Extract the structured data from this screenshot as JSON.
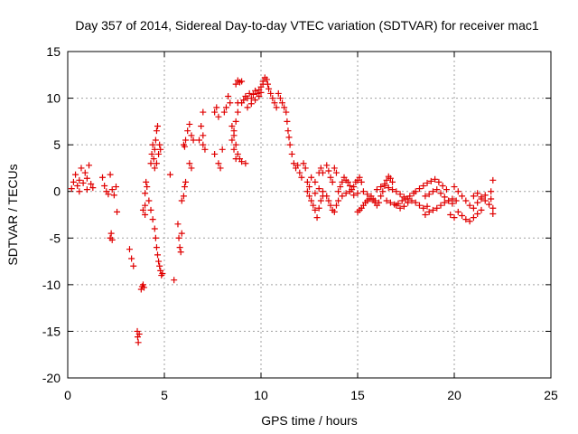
{
  "chart_data": {
    "type": "scatter",
    "title": "Day 357 of 2014, Sidereal Day-to-day VTEC variation (SDTVAR) for receiver mac1",
    "xlabel": "GPS time / hours",
    "ylabel": "SDTVAR / TECUs",
    "xlim": [
      0,
      25
    ],
    "ylim": [
      -20,
      15
    ],
    "xticks": [
      0,
      5,
      10,
      15,
      20,
      25
    ],
    "yticks": [
      -20,
      -15,
      -10,
      -5,
      0,
      5,
      10,
      15
    ],
    "xtick_labels": [
      "0",
      "5",
      "10",
      "15",
      "20",
      "25"
    ],
    "ytick_labels": [
      "-20",
      "-15",
      "-10",
      "-5",
      "0",
      "5",
      "10",
      "15"
    ],
    "grid": true,
    "marker": "+",
    "color": "#e00000",
    "series": [
      {
        "name": "mac1",
        "points": [
          [
            0.2,
            0.3
          ],
          [
            0.3,
            1.0
          ],
          [
            0.4,
            1.8
          ],
          [
            0.5,
            0.6
          ],
          [
            0.6,
            1.2
          ],
          [
            0.7,
            2.5
          ],
          [
            0.8,
            0.9
          ],
          [
            0.9,
            2.0
          ],
          [
            1.0,
            1.4
          ],
          [
            1.1,
            2.8
          ],
          [
            1.2,
            0.8
          ],
          [
            1.3,
            0.4
          ],
          [
            1.0,
            0.2
          ],
          [
            0.6,
            0.0
          ],
          [
            1.8,
            1.5
          ],
          [
            1.9,
            0.6
          ],
          [
            2.0,
            0.0
          ],
          [
            2.1,
            -0.3
          ],
          [
            2.2,
            1.8
          ],
          [
            2.2,
            -5.0
          ],
          [
            2.25,
            -4.5
          ],
          [
            2.3,
            0.2
          ],
          [
            2.3,
            -5.2
          ],
          [
            2.4,
            -0.4
          ],
          [
            2.5,
            0.5
          ],
          [
            2.55,
            -2.2
          ],
          [
            3.2,
            -6.2
          ],
          [
            3.3,
            -7.2
          ],
          [
            3.4,
            -8.0
          ],
          [
            3.6,
            -15.0
          ],
          [
            3.62,
            -15.6
          ],
          [
            3.65,
            -16.2
          ],
          [
            3.7,
            -15.3
          ],
          [
            3.8,
            -10.5
          ],
          [
            3.85,
            -10.2
          ],
          [
            3.9,
            -10.0
          ],
          [
            3.95,
            -10.3
          ],
          [
            3.9,
            -2.0
          ],
          [
            4.0,
            -1.5
          ],
          [
            4.0,
            -0.2
          ],
          [
            4.1,
            0.5
          ],
          [
            4.0,
            -2.5
          ],
          [
            4.05,
            1.0
          ],
          [
            4.2,
            -1.0
          ],
          [
            4.3,
            -2.0
          ],
          [
            4.4,
            -3.0
          ],
          [
            4.5,
            -4.0
          ],
          [
            4.55,
            -5.0
          ],
          [
            4.6,
            -6.0
          ],
          [
            4.65,
            -6.8
          ],
          [
            4.7,
            -7.5
          ],
          [
            4.75,
            -8.0
          ],
          [
            4.8,
            -8.5
          ],
          [
            4.85,
            -9.0
          ],
          [
            4.9,
            -8.8
          ],
          [
            4.3,
            3.0
          ],
          [
            4.35,
            4.0
          ],
          [
            4.4,
            5.0
          ],
          [
            4.45,
            3.5
          ],
          [
            4.5,
            4.5
          ],
          [
            4.55,
            5.5
          ],
          [
            4.6,
            6.5
          ],
          [
            4.65,
            7.0
          ],
          [
            4.7,
            4.0
          ],
          [
            4.75,
            5.0
          ],
          [
            4.8,
            4.5
          ],
          [
            4.5,
            2.5
          ],
          [
            4.6,
            3.0
          ],
          [
            5.3,
            1.8
          ],
          [
            5.5,
            -9.5
          ],
          [
            5.7,
            -3.5
          ],
          [
            5.75,
            -5.0
          ],
          [
            5.8,
            -6.0
          ],
          [
            5.85,
            -6.5
          ],
          [
            5.9,
            -4.5
          ],
          [
            5.9,
            -1.0
          ],
          [
            6.0,
            -0.5
          ],
          [
            6.05,
            0.5
          ],
          [
            6.1,
            1.0
          ],
          [
            6.0,
            5.0
          ],
          [
            6.05,
            4.8
          ],
          [
            6.1,
            5.5
          ],
          [
            6.2,
            6.5
          ],
          [
            6.3,
            7.2
          ],
          [
            6.4,
            6.0
          ],
          [
            6.3,
            3.0
          ],
          [
            6.4,
            2.5
          ],
          [
            6.5,
            5.5
          ],
          [
            6.8,
            5.5
          ],
          [
            6.9,
            7.0
          ],
          [
            7.0,
            6.0
          ],
          [
            7.0,
            8.5
          ],
          [
            7.1,
            4.5
          ],
          [
            7.0,
            5.0
          ],
          [
            7.6,
            8.5
          ],
          [
            7.7,
            9.0
          ],
          [
            7.8,
            8.0
          ],
          [
            7.6,
            4.0
          ],
          [
            7.8,
            3.0
          ],
          [
            7.9,
            2.5
          ],
          [
            8.0,
            4.5
          ],
          [
            8.1,
            8.5
          ],
          [
            8.2,
            9.0
          ],
          [
            8.3,
            10.2
          ],
          [
            8.4,
            9.5
          ],
          [
            8.5,
            7.0
          ],
          [
            8.6,
            6.5
          ],
          [
            8.7,
            7.5
          ],
          [
            8.8,
            8.5
          ],
          [
            8.5,
            5.5
          ],
          [
            8.6,
            4.5
          ],
          [
            8.7,
            3.5
          ],
          [
            8.8,
            4.0
          ],
          [
            8.9,
            3.5
          ],
          [
            9.0,
            3.2
          ],
          [
            9.2,
            3.0
          ],
          [
            8.6,
            6.0
          ],
          [
            8.7,
            5.0
          ],
          [
            8.7,
            11.5
          ],
          [
            8.8,
            11.9
          ],
          [
            8.9,
            11.7
          ],
          [
            9.0,
            11.8
          ],
          [
            8.8,
            9.5
          ],
          [
            9.0,
            9.5
          ],
          [
            9.1,
            9.8
          ],
          [
            9.2,
            10.2
          ],
          [
            9.3,
            10.0
          ],
          [
            9.4,
            10.5
          ],
          [
            9.5,
            10.0
          ],
          [
            9.6,
            10.4
          ],
          [
            9.7,
            10.8
          ],
          [
            9.8,
            10.5
          ],
          [
            9.9,
            10.9
          ],
          [
            10.0,
            11.2
          ],
          [
            10.1,
            11.5
          ],
          [
            9.3,
            9.0
          ],
          [
            9.5,
            9.4
          ],
          [
            9.7,
            9.8
          ],
          [
            9.9,
            10.2
          ],
          [
            10.0,
            10.6
          ],
          [
            10.1,
            11.8
          ],
          [
            10.2,
            12.2
          ],
          [
            10.3,
            12.0
          ],
          [
            10.35,
            11.5
          ],
          [
            10.4,
            11.0
          ],
          [
            10.5,
            10.5
          ],
          [
            10.6,
            10.0
          ],
          [
            10.7,
            9.5
          ],
          [
            10.8,
            9.0
          ],
          [
            10.9,
            10.5
          ],
          [
            11.0,
            10.0
          ],
          [
            11.1,
            9.5
          ],
          [
            11.2,
            9.0
          ],
          [
            11.3,
            8.5
          ],
          [
            11.35,
            7.5
          ],
          [
            11.4,
            6.5
          ],
          [
            11.45,
            5.8
          ],
          [
            11.5,
            5.0
          ],
          [
            11.6,
            4.0
          ],
          [
            11.7,
            3.0
          ],
          [
            11.8,
            2.5
          ],
          [
            11.9,
            2.8
          ],
          [
            12.0,
            2.0
          ],
          [
            12.1,
            1.5
          ],
          [
            12.2,
            3.0
          ],
          [
            12.3,
            2.5
          ],
          [
            12.4,
            1.0
          ],
          [
            12.5,
            0.5
          ],
          [
            12.4,
            0.0
          ],
          [
            12.5,
            -0.5
          ],
          [
            12.6,
            -1.0
          ],
          [
            12.7,
            -1.5
          ],
          [
            12.8,
            -2.0
          ],
          [
            12.9,
            -2.8
          ],
          [
            13.0,
            -1.8
          ],
          [
            13.1,
            -1.0
          ],
          [
            13.2,
            -0.5
          ],
          [
            12.6,
            1.5
          ],
          [
            12.8,
            1.0
          ],
          [
            13.0,
            2.0
          ],
          [
            13.1,
            2.5
          ],
          [
            13.2,
            2.0
          ],
          [
            13.4,
            2.8
          ],
          [
            13.5,
            2.2
          ],
          [
            13.6,
            1.5
          ],
          [
            13.7,
            1.0
          ],
          [
            13.8,
            2.5
          ],
          [
            13.9,
            2.0
          ],
          [
            12.8,
            -0.2
          ],
          [
            13.0,
            0.3
          ],
          [
            13.2,
            0.0
          ],
          [
            13.4,
            -0.5
          ],
          [
            13.5,
            -1.0
          ],
          [
            13.6,
            -1.5
          ],
          [
            13.7,
            -2.0
          ],
          [
            13.8,
            -2.2
          ],
          [
            13.9,
            -1.5
          ],
          [
            14.0,
            -1.0
          ],
          [
            14.0,
            0.0
          ],
          [
            14.1,
            0.5
          ],
          [
            14.2,
            1.0
          ],
          [
            14.3,
            1.5
          ],
          [
            14.4,
            1.2
          ],
          [
            14.5,
            1.0
          ],
          [
            14.6,
            0.6
          ],
          [
            14.7,
            0.2
          ],
          [
            14.8,
            0.5
          ],
          [
            14.9,
            1.0
          ],
          [
            14.2,
            -0.5
          ],
          [
            14.4,
            -0.2
          ],
          [
            14.6,
            0.0
          ],
          [
            14.8,
            -0.4
          ],
          [
            15.0,
            -0.2
          ],
          [
            15.0,
            1.2
          ],
          [
            15.1,
            1.5
          ],
          [
            15.2,
            1.0
          ],
          [
            15.0,
            -2.2
          ],
          [
            15.1,
            -2.0
          ],
          [
            15.2,
            -1.8
          ],
          [
            15.3,
            -1.5
          ],
          [
            15.4,
            -1.2
          ],
          [
            15.5,
            -1.0
          ],
          [
            15.6,
            -0.8
          ],
          [
            15.7,
            -0.5
          ],
          [
            15.8,
            -0.8
          ],
          [
            15.9,
            -1.0
          ],
          [
            15.3,
            0.0
          ],
          [
            15.5,
            -0.3
          ],
          [
            15.7,
            -0.8
          ],
          [
            15.9,
            -1.2
          ],
          [
            16.0,
            -1.5
          ],
          [
            16.1,
            -1.2
          ],
          [
            16.2,
            -0.5
          ],
          [
            16.3,
            0.0
          ],
          [
            16.4,
            0.8
          ],
          [
            16.5,
            1.2
          ],
          [
            16.6,
            1.6
          ],
          [
            16.7,
            1.4
          ],
          [
            16.8,
            1.0
          ],
          [
            16.0,
            0.2
          ],
          [
            16.2,
            0.5
          ],
          [
            16.4,
            0.6
          ],
          [
            16.6,
            0.4
          ],
          [
            16.8,
            0.2
          ],
          [
            17.0,
            0.0
          ],
          [
            17.2,
            -0.3
          ],
          [
            17.4,
            -0.6
          ],
          [
            17.6,
            -0.8
          ],
          [
            16.5,
            -1.0
          ],
          [
            16.7,
            -1.2
          ],
          [
            16.9,
            -1.4
          ],
          [
            17.1,
            -1.3
          ],
          [
            17.3,
            -1.0
          ],
          [
            17.5,
            -0.8
          ],
          [
            17.7,
            -0.5
          ],
          [
            17.9,
            -0.2
          ],
          [
            17.0,
            -1.5
          ],
          [
            17.2,
            -1.8
          ],
          [
            17.4,
            -1.6
          ],
          [
            17.6,
            -1.2
          ],
          [
            17.8,
            -1.0
          ],
          [
            18.0,
            -1.2
          ],
          [
            18.2,
            -1.5
          ],
          [
            18.4,
            -1.8
          ],
          [
            18.6,
            -1.6
          ],
          [
            18.0,
            0.0
          ],
          [
            18.2,
            0.3
          ],
          [
            18.4,
            0.6
          ],
          [
            18.6,
            0.9
          ],
          [
            18.8,
            1.1
          ],
          [
            19.0,
            1.3
          ],
          [
            19.2,
            1.0
          ],
          [
            19.4,
            0.6
          ],
          [
            19.6,
            0.2
          ],
          [
            18.5,
            -0.5
          ],
          [
            18.7,
            -0.3
          ],
          [
            18.9,
            0.0
          ],
          [
            19.1,
            0.2
          ],
          [
            19.3,
            -0.2
          ],
          [
            19.5,
            -0.6
          ],
          [
            19.7,
            -1.0
          ],
          [
            19.9,
            -1.3
          ],
          [
            18.5,
            -2.5
          ],
          [
            18.7,
            -2.2
          ],
          [
            18.9,
            -2.0
          ],
          [
            19.1,
            -1.8
          ],
          [
            19.3,
            -1.5
          ],
          [
            19.5,
            -1.2
          ],
          [
            19.7,
            -1.0
          ],
          [
            19.9,
            -0.8
          ],
          [
            20.1,
            -1.0
          ],
          [
            19.8,
            -2.5
          ],
          [
            20.0,
            -2.8
          ],
          [
            20.2,
            -2.2
          ],
          [
            20.4,
            -2.6
          ],
          [
            20.6,
            -3.0
          ],
          [
            20.8,
            -3.2
          ],
          [
            21.0,
            -2.8
          ],
          [
            21.2,
            -2.4
          ],
          [
            21.4,
            -2.0
          ],
          [
            20.0,
            0.5
          ],
          [
            20.2,
            0.0
          ],
          [
            20.4,
            -0.5
          ],
          [
            20.6,
            -1.0
          ],
          [
            20.8,
            -1.5
          ],
          [
            21.0,
            -1.8
          ],
          [
            21.2,
            -1.2
          ],
          [
            21.4,
            -0.8
          ],
          [
            21.6,
            -0.4
          ],
          [
            21.0,
            -0.5
          ],
          [
            21.2,
            -0.2
          ],
          [
            21.4,
            -0.6
          ],
          [
            21.6,
            -1.0
          ],
          [
            21.8,
            -1.4
          ],
          [
            21.9,
            -0.8
          ],
          [
            22.0,
            -1.8
          ],
          [
            22.0,
            -2.4
          ],
          [
            22.0,
            1.2
          ],
          [
            21.9,
            0.0
          ]
        ]
      }
    ]
  }
}
